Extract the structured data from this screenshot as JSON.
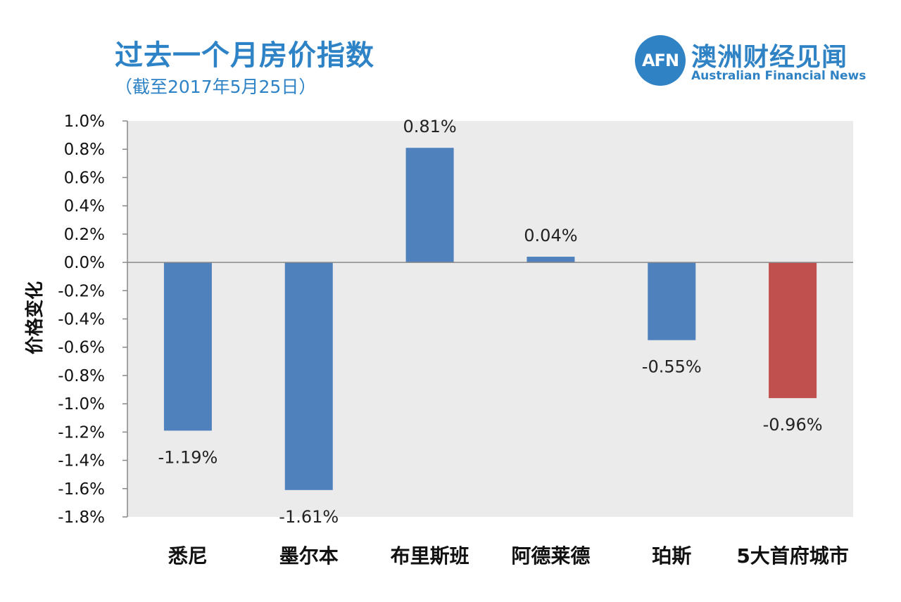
{
  "header": {
    "title": "过去一个月房价指数",
    "subtitle": "（截至2017年5月25日）"
  },
  "logo": {
    "mark": "AFN",
    "name_cn": "澳洲财经见闻",
    "name_en": "Australian Financial News"
  },
  "chart_data": {
    "type": "bar",
    "categories": [
      "悉尼",
      "墨尔本",
      "布里斯班",
      "阿德莱德",
      "珀斯",
      "5大首府城市"
    ],
    "values": [
      -1.19,
      -1.61,
      0.81,
      0.04,
      -0.55,
      -0.96
    ],
    "data_labels": [
      "-1.19%",
      "-1.61%",
      "0.81%",
      "0.04%",
      "-0.55%",
      "-0.96%"
    ],
    "bar_colors": [
      "#4f81bd",
      "#4f81bd",
      "#4f81bd",
      "#4f81bd",
      "#4f81bd",
      "#c0504d"
    ],
    "ylabel": "价格变化",
    "ylim": [
      -1.8,
      1.0
    ],
    "yticks": [
      1.0,
      0.8,
      0.6,
      0.4,
      0.2,
      0.0,
      -0.2,
      -0.4,
      -0.6,
      -0.8,
      -1.0,
      -1.2,
      -1.4,
      -1.6,
      -1.8
    ],
    "ytick_labels": [
      "1.0%",
      "0.8%",
      "0.6%",
      "0.4%",
      "0.2%",
      "0.0%",
      "-0.2%",
      "-0.4%",
      "-0.6%",
      "-0.8%",
      "-1.0%",
      "-1.2%",
      "-1.4%",
      "-1.6%",
      "-1.8%"
    ],
    "plot_background": "#ebebeb",
    "grid": false,
    "legend": "none"
  }
}
